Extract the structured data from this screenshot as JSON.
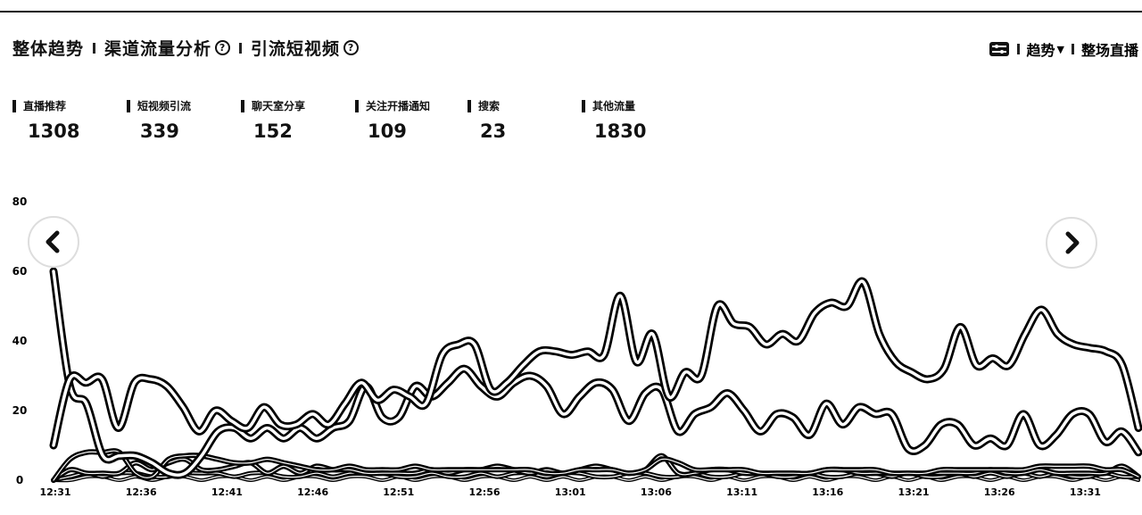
{
  "tabs": [
    {
      "label": "整体趋势",
      "help": false
    },
    {
      "label": "渠道流量分析",
      "help": true
    },
    {
      "label": "引流短视频",
      "help": true
    }
  ],
  "toolbar": {
    "trend_label": "趋势",
    "whole_live_label": "整场直播"
  },
  "metrics": [
    {
      "label": "直播推荐",
      "value": "1308"
    },
    {
      "label": "短视频引流",
      "value": "339"
    },
    {
      "label": "聊天室分享",
      "value": "152"
    },
    {
      "label": "关注开播通知",
      "value": "109"
    },
    {
      "label": "搜索",
      "value": "23"
    },
    {
      "label": "其他流量",
      "value": "1830"
    }
  ],
  "chart_data": {
    "type": "line",
    "title": "",
    "xlabel": "",
    "ylabel": "",
    "ylim": [
      0,
      80
    ],
    "yticks": [
      "0",
      "20",
      "40",
      "60",
      "80"
    ],
    "x_ticks": [
      "12:31",
      "12:36",
      "12:41",
      "12:46",
      "12:51",
      "12:56",
      "13:01",
      "13:06",
      "13:11",
      "13:16",
      "13:21",
      "13:26",
      "13:31"
    ],
    "grid": false,
    "legend": "none",
    "series": [
      {
        "values": [
          10,
          29,
          28,
          29,
          15,
          28,
          29,
          27,
          21,
          14,
          20,
          17,
          15,
          21,
          16,
          16,
          19,
          16,
          22,
          28,
          23,
          26,
          24,
          22,
          36,
          39,
          39,
          26,
          28,
          33,
          37,
          37,
          36,
          37,
          36,
          53,
          34,
          42,
          24,
          31,
          30,
          50,
          45,
          44,
          39,
          42,
          40,
          48,
          51,
          50,
          57,
          42,
          34,
          31,
          29,
          32,
          44,
          33,
          35,
          33,
          42,
          49,
          42,
          39,
          38,
          37,
          33,
          15
        ]
      },
      {
        "values": [
          60,
          27,
          22,
          7,
          7,
          7,
          5,
          2,
          2,
          7,
          14,
          15,
          12,
          15,
          12,
          15,
          12,
          15,
          17,
          27,
          18,
          18,
          27,
          24,
          28,
          32,
          27,
          24,
          28,
          30,
          27,
          19,
          24,
          28,
          26,
          17,
          25,
          26,
          14,
          19,
          21,
          25,
          20,
          14,
          19,
          18,
          13,
          22,
          16,
          21,
          19,
          19,
          9,
          10,
          16,
          16,
          10,
          12,
          10,
          19,
          10,
          13,
          19,
          19,
          11,
          14,
          8
        ]
      },
      {
        "values": [
          0,
          6,
          8,
          8,
          8,
          2,
          1,
          6,
          7,
          7,
          6,
          5,
          5,
          6,
          5,
          4,
          3,
          3,
          4,
          3,
          3,
          3,
          4,
          3,
          3,
          3,
          3,
          3,
          3,
          3,
          2,
          2,
          3,
          3,
          3,
          2,
          3,
          6,
          5,
          3,
          3,
          3,
          3,
          2,
          2,
          2,
          2,
          3,
          3,
          3,
          3,
          2,
          2,
          2,
          3,
          3,
          3,
          3,
          3,
          3,
          4,
          4,
          4,
          4,
          3,
          3,
          1
        ]
      },
      {
        "values": [
          0,
          3,
          2,
          2,
          2,
          5,
          3,
          5,
          6,
          3,
          3,
          4,
          5,
          2,
          4,
          2,
          4,
          3,
          3,
          2,
          2,
          2,
          2,
          3,
          2,
          3,
          3,
          4,
          3,
          2,
          3,
          2,
          3,
          4,
          3,
          2,
          3,
          7,
          2,
          2,
          3,
          3,
          2,
          2,
          2,
          2,
          2,
          3,
          3,
          2,
          2,
          2,
          2,
          2,
          2,
          2,
          2,
          3,
          2,
          2,
          3,
          2,
          2,
          2,
          2,
          4,
          1
        ]
      },
      {
        "values": [
          0,
          1,
          2,
          1,
          2,
          2,
          1,
          1,
          2,
          2,
          2,
          1,
          2,
          2,
          1,
          1,
          2,
          1,
          2,
          2,
          2,
          1,
          1,
          2,
          1,
          1,
          2,
          1,
          2,
          2,
          1,
          2,
          2,
          1,
          1,
          2,
          2,
          1,
          1,
          2,
          1,
          1,
          2,
          2,
          1,
          1,
          2,
          1,
          1,
          2,
          2,
          1,
          2,
          1,
          1,
          2,
          1,
          2,
          1,
          2,
          1,
          2,
          1,
          1,
          2,
          1,
          1
        ]
      },
      {
        "values": [
          0,
          0,
          1,
          1,
          0,
          1,
          0,
          1,
          1,
          0,
          1,
          1,
          0,
          1,
          0,
          1,
          1,
          0,
          1,
          1,
          0,
          1,
          0,
          1,
          1,
          0,
          1,
          1,
          0,
          1,
          0,
          1,
          0,
          1,
          1,
          0,
          1,
          0,
          1,
          1,
          0,
          1,
          0,
          1,
          1,
          0,
          1,
          0,
          1,
          1,
          0,
          1,
          0,
          1,
          0,
          1,
          1,
          0,
          1,
          0,
          1,
          1,
          0,
          1,
          0,
          1,
          0
        ]
      }
    ]
  }
}
